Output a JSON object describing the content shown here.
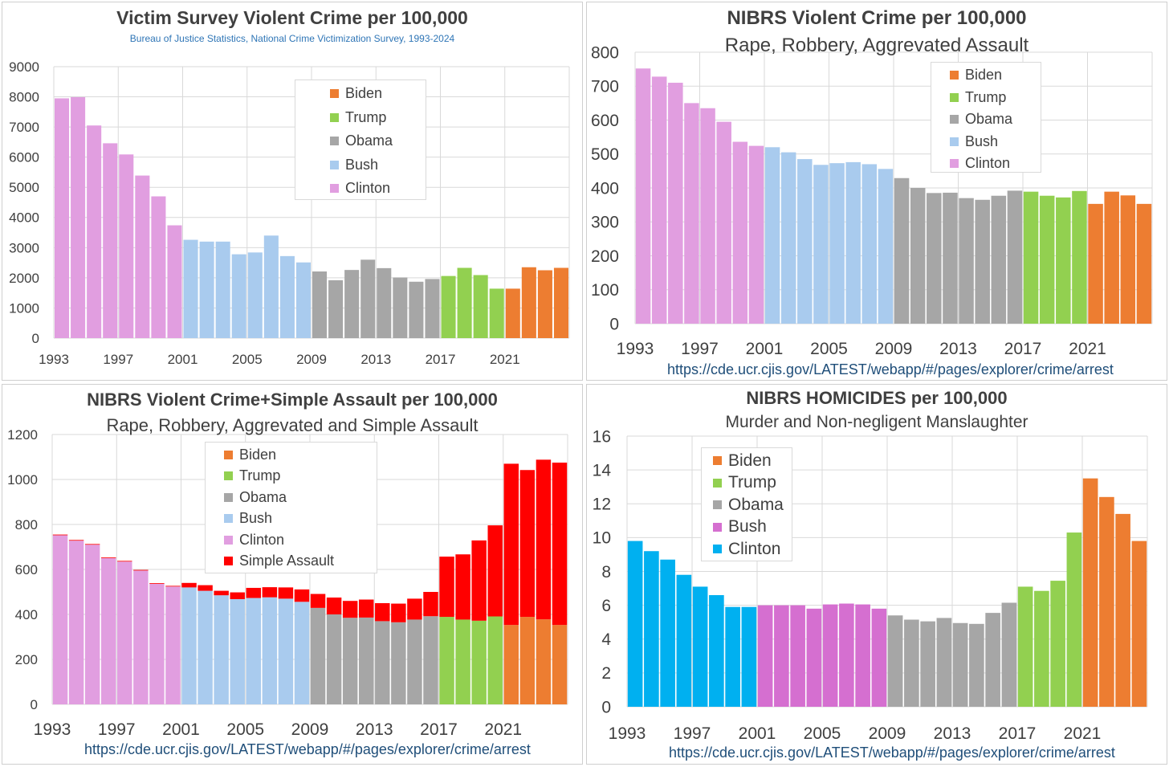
{
  "colors": {
    "Clinton": "#e19ee0",
    "Bush": "#a9cbee",
    "Obama": "#a6a6a6",
    "Trump": "#92d050",
    "Biden": "#ed7d31",
    "SimpleAssault": "#ff0000",
    "ClintonHom": "#00b0f0",
    "BushHom": "#d56fd0",
    "src": "#1f4e79",
    "sub0": "#2e75b6"
  },
  "chart_data": [
    {
      "type": "bar",
      "title": "Victim Survey Violent Crime per 100,000",
      "subtitle": "Bureau of Justice Statistics, National Crime Victimization Survey, 1993-2024",
      "years": [
        1993,
        1994,
        1995,
        1996,
        1997,
        1998,
        1999,
        2000,
        2001,
        2002,
        2003,
        2004,
        2005,
        2006,
        2007,
        2008,
        2009,
        2010,
        2011,
        2012,
        2013,
        2014,
        2015,
        2016,
        2017,
        2018,
        2019,
        2020,
        2021,
        2022,
        2023,
        2024
      ],
      "tick_labels": [
        "1993",
        "1997",
        "2001",
        "2005",
        "2009",
        "2013",
        "2017",
        "2021"
      ],
      "values": [
        7950,
        7990,
        7050,
        6460,
        6090,
        5390,
        4700,
        3740,
        3260,
        3200,
        3200,
        2780,
        2840,
        3400,
        2720,
        2510,
        2210,
        1920,
        2260,
        2600,
        2320,
        2010,
        1870,
        1960,
        2060,
        2330,
        2090,
        1640,
        1640,
        2350,
        2250,
        2330
      ],
      "groups": [
        "Clinton",
        "Clinton",
        "Clinton",
        "Clinton",
        "Clinton",
        "Clinton",
        "Clinton",
        "Clinton",
        "Bush",
        "Bush",
        "Bush",
        "Bush",
        "Bush",
        "Bush",
        "Bush",
        "Bush",
        "Obama",
        "Obama",
        "Obama",
        "Obama",
        "Obama",
        "Obama",
        "Obama",
        "Obama",
        "Trump",
        "Trump",
        "Trump",
        "Trump",
        "Biden",
        "Biden",
        "Biden",
        "Biden"
      ],
      "ylim": [
        0,
        9000
      ],
      "yticks": [
        0,
        1000,
        2000,
        3000,
        4000,
        5000,
        6000,
        7000,
        8000,
        9000
      ],
      "legend": [
        "Biden",
        "Trump",
        "Obama",
        "Bush",
        "Clinton"
      ],
      "legend_position": "top-center"
    },
    {
      "type": "bar",
      "title": "NIBRS Violent Crime  per 100,000",
      "subtitle": "Rape, Robbery, Aggrevated Assault",
      "source": "https://cde.ucr.cjis.gov/LATEST/webapp/#/pages/explorer/crime/arrest",
      "years": [
        1993,
        1994,
        1995,
        1996,
        1997,
        1998,
        1999,
        2000,
        2001,
        2002,
        2003,
        2004,
        2005,
        2006,
        2007,
        2008,
        2009,
        2010,
        2011,
        2012,
        2013,
        2014,
        2015,
        2016,
        2017,
        2018,
        2019,
        2020,
        2021,
        2022,
        2023,
        2024
      ],
      "tick_labels": [
        "1993",
        "1997",
        "2001",
        "2005",
        "2009",
        "2013",
        "2017",
        "2021"
      ],
      "values": [
        752,
        728,
        710,
        650,
        635,
        595,
        536,
        524,
        520,
        505,
        485,
        468,
        473,
        476,
        470,
        456,
        429,
        400,
        385,
        386,
        370,
        365,
        377,
        392,
        389,
        377,
        372,
        391,
        353,
        389,
        378,
        353
      ],
      "groups": [
        "Clinton",
        "Clinton",
        "Clinton",
        "Clinton",
        "Clinton",
        "Clinton",
        "Clinton",
        "Clinton",
        "Bush",
        "Bush",
        "Bush",
        "Bush",
        "Bush",
        "Bush",
        "Bush",
        "Bush",
        "Obama",
        "Obama",
        "Obama",
        "Obama",
        "Obama",
        "Obama",
        "Obama",
        "Obama",
        "Trump",
        "Trump",
        "Trump",
        "Trump",
        "Biden",
        "Biden",
        "Biden",
        "Biden"
      ],
      "ylim": [
        0,
        800
      ],
      "yticks": [
        0,
        100,
        200,
        300,
        400,
        500,
        600,
        700,
        800
      ],
      "legend": [
        "Biden",
        "Trump",
        "Obama",
        "Bush",
        "Clinton"
      ],
      "legend_position": "top-right"
    },
    {
      "type": "bar",
      "stacked": true,
      "title": "NIBRS Violent Crime+Simple Assault  per 100,000",
      "subtitle": "Rape, Robbery, Aggrevated  and Simple Assault",
      "source": "https://cde.ucr.cjis.gov/LATEST/webapp/#/pages/explorer/crime/arrest",
      "years": [
        1993,
        1994,
        1995,
        1996,
        1997,
        1998,
        1999,
        2000,
        2001,
        2002,
        2003,
        2004,
        2005,
        2006,
        2007,
        2008,
        2009,
        2010,
        2011,
        2012,
        2013,
        2014,
        2015,
        2016,
        2017,
        2018,
        2019,
        2020,
        2021,
        2022,
        2023,
        2024
      ],
      "tick_labels": [
        "1993",
        "1997",
        "2001",
        "2005",
        "2009",
        "2013",
        "2017",
        "2021"
      ],
      "values": [
        752,
        728,
        710,
        650,
        635,
        595,
        536,
        524,
        520,
        505,
        485,
        468,
        473,
        476,
        470,
        456,
        429,
        400,
        385,
        386,
        370,
        365,
        377,
        392,
        389,
        377,
        372,
        391,
        353,
        389,
        378,
        353
      ],
      "simple_assault": [
        3,
        3,
        3,
        3,
        3,
        3,
        3,
        3,
        20,
        25,
        20,
        30,
        45,
        45,
        50,
        55,
        62,
        75,
        75,
        80,
        80,
        83,
        93,
        108,
        268,
        290,
        357,
        405,
        717,
        653,
        710,
        722
      ],
      "groups": [
        "Clinton",
        "Clinton",
        "Clinton",
        "Clinton",
        "Clinton",
        "Clinton",
        "Clinton",
        "Clinton",
        "Bush",
        "Bush",
        "Bush",
        "Bush",
        "Bush",
        "Bush",
        "Bush",
        "Bush",
        "Obama",
        "Obama",
        "Obama",
        "Obama",
        "Obama",
        "Obama",
        "Obama",
        "Obama",
        "Trump",
        "Trump",
        "Trump",
        "Trump",
        "Biden",
        "Biden",
        "Biden",
        "Biden"
      ],
      "ylim": [
        0,
        1200
      ],
      "yticks": [
        0,
        200,
        400,
        600,
        800,
        1000,
        1200
      ],
      "legend": [
        "Biden",
        "Trump",
        "Obama",
        "Bush",
        "Clinton",
        "Simple Assault"
      ],
      "legend_keys": [
        "Biden",
        "Trump",
        "Obama",
        "Bush",
        "Clinton",
        "SimpleAssault"
      ],
      "legend_position": "top-center"
    },
    {
      "type": "bar",
      "title": "NIBRS HOMICIDES  per 100,000",
      "subtitle": "Murder and Non-negligent Manslaughter",
      "source": "https://cde.ucr.cjis.gov/LATEST/webapp/#/pages/explorer/crime/arrest",
      "years": [
        1993,
        1994,
        1995,
        1996,
        1997,
        1998,
        1999,
        2000,
        2001,
        2002,
        2003,
        2004,
        2005,
        2006,
        2007,
        2008,
        2009,
        2010,
        2011,
        2012,
        2013,
        2014,
        2015,
        2016,
        2017,
        2018,
        2019,
        2020,
        2021,
        2022,
        2023,
        2024
      ],
      "tick_labels": [
        "1993",
        "1997",
        "2001",
        "2005",
        "2009",
        "2013",
        "2017",
        "2021"
      ],
      "values": [
        9.8,
        9.2,
        8.7,
        7.8,
        7.1,
        6.6,
        5.9,
        5.9,
        6.0,
        6.0,
        6.0,
        5.8,
        6.05,
        6.1,
        6.05,
        5.8,
        5.4,
        5.15,
        5.05,
        5.25,
        4.95,
        4.9,
        5.55,
        6.15,
        7.1,
        6.85,
        7.45,
        10.3,
        13.5,
        12.4,
        11.4,
        9.8
      ],
      "groups": [
        "ClintonHom",
        "ClintonHom",
        "ClintonHom",
        "ClintonHom",
        "ClintonHom",
        "ClintonHom",
        "ClintonHom",
        "ClintonHom",
        "BushHom",
        "BushHom",
        "BushHom",
        "BushHom",
        "BushHom",
        "BushHom",
        "BushHom",
        "BushHom",
        "Obama",
        "Obama",
        "Obama",
        "Obama",
        "Obama",
        "Obama",
        "Obama",
        "Obama",
        "Trump",
        "Trump",
        "Trump",
        "Trump",
        "Biden",
        "Biden",
        "Biden",
        "Biden"
      ],
      "ylim": [
        0,
        16
      ],
      "yticks": [
        0,
        2,
        4,
        6,
        8,
        10,
        12,
        14,
        16
      ],
      "legend": [
        "Biden",
        "Trump",
        "Obama",
        "Bush",
        "Clinton"
      ],
      "legend_keys": [
        "Biden",
        "Trump",
        "Obama",
        "BushHom",
        "ClintonHom"
      ],
      "legend_position": "top-left"
    }
  ]
}
